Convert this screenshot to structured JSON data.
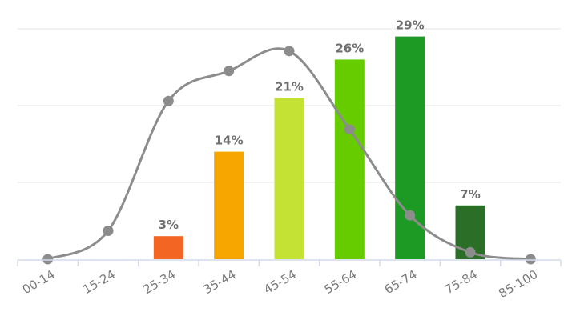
{
  "chart_data": {
    "type": "bar",
    "categories": [
      "00-14",
      "15-24",
      "25-34",
      "35-44",
      "45-54",
      "55-64",
      "65-74",
      "75-84",
      "85-100"
    ],
    "series": [
      {
        "type": "bar",
        "values": [
          null,
          null,
          3,
          14,
          21,
          26,
          29,
          7,
          null
        ],
        "labels": [
          "",
          "",
          "3%",
          "14%",
          "21%",
          "26%",
          "29%",
          "7%",
          ""
        ],
        "colors": [
          "",
          "",
          "#f26522",
          "#f7a600",
          "#c3e234",
          "#66cc00",
          "#1c9a24",
          "#2b6e28",
          ""
        ]
      },
      {
        "type": "line",
        "smooth": true,
        "color": "#8c8c8c",
        "values": [
          0.0,
          3.7,
          20.6,
          24.5,
          27.1,
          16.9,
          5.7,
          0.9,
          0.0
        ]
      }
    ],
    "ylim": [
      0,
      30
    ],
    "grid": true,
    "legend": "none"
  }
}
